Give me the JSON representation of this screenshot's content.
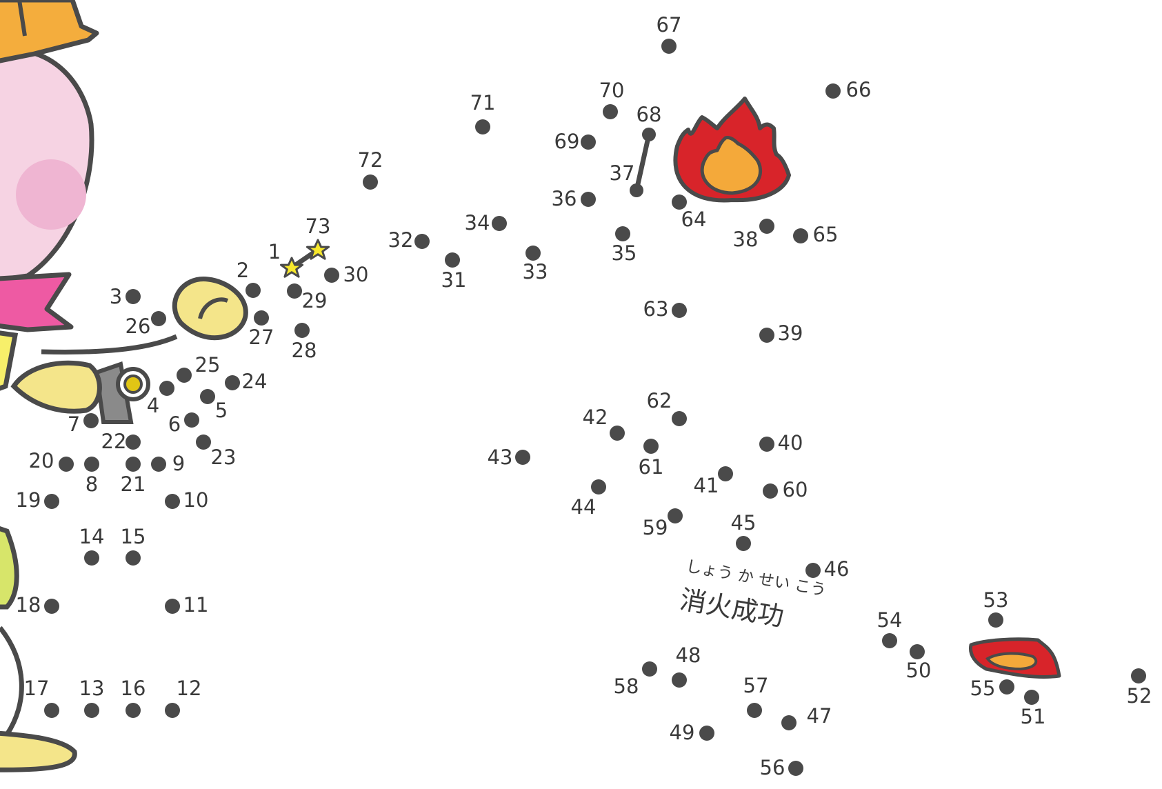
{
  "puzzle": {
    "caption": "消火成功",
    "caption_reading": "しょう か せい こう",
    "dots": [
      "1",
      "2",
      "3",
      "4",
      "5",
      "6",
      "7",
      "8",
      "9",
      "10",
      "11",
      "12",
      "13",
      "14",
      "15",
      "16",
      "17",
      "18",
      "19",
      "20",
      "21",
      "22",
      "23",
      "24",
      "25",
      "26",
      "27",
      "28",
      "29",
      "30",
      "31",
      "32",
      "33",
      "34",
      "35",
      "36",
      "37",
      "38",
      "39",
      "40",
      "41",
      "42",
      "43",
      "44",
      "45",
      "46",
      "47",
      "48",
      "49",
      "50",
      "51",
      "52",
      "53",
      "54",
      "55",
      "56",
      "57",
      "58",
      "59",
      "60",
      "61",
      "62",
      "63",
      "64",
      "65",
      "66",
      "67",
      "68",
      "69",
      "70",
      "71",
      "72",
      "73"
    ],
    "colors": {
      "dot": "#4a4a4a",
      "label": "#3a3a3a",
      "outline": "#4a4a4a",
      "face": "#f6d3e3",
      "cheek": "#efb5d2",
      "helmet": "#f4ad3d",
      "scarf": "#ee5aa3",
      "glove": "#f4e58a",
      "flame_outer": "#d8242a",
      "flame_inner": "#f4a93a",
      "star": "#f7e82c",
      "shirt": "#f7ef6a",
      "pants": "#d7e56a",
      "nozzle": "#8a8a8a",
      "ring": "#e0c515"
    }
  }
}
